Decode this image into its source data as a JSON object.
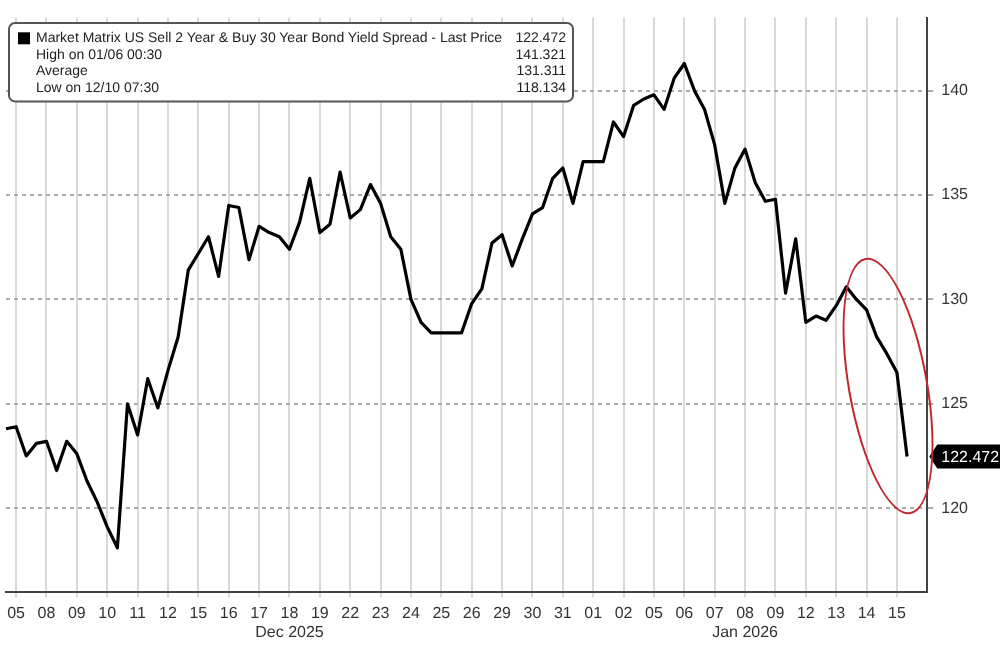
{
  "chart_data": {
    "type": "line",
    "categories": [
      null,
      "05",
      null,
      null,
      "08",
      null,
      null,
      "09",
      null,
      null,
      "10",
      null,
      null,
      "11",
      null,
      null,
      "12",
      null,
      null,
      "15",
      null,
      null,
      "16",
      null,
      null,
      "17",
      null,
      null,
      "18\nDec 2025",
      null,
      null,
      "19",
      null,
      null,
      "22",
      null,
      null,
      "23",
      null,
      null,
      "24",
      null,
      null,
      "25",
      null,
      null,
      "26",
      null,
      null,
      "29",
      null,
      null,
      "30",
      null,
      null,
      "31",
      null,
      null,
      "01",
      null,
      null,
      "02",
      null,
      null,
      "05",
      null,
      null,
      "06",
      null,
      null,
      "07",
      null,
      null,
      "08\nJan 2026",
      null,
      null,
      "09",
      null,
      null,
      "12",
      null,
      null,
      "13",
      null,
      null,
      "14",
      null,
      null,
      "15",
      null,
      null,
      null
    ],
    "series": [
      {
        "name": "Market Matrix US Sell 2 Year & Buy 30 Year Bond Yield Spread - Last Price",
        "color": "#000000",
        "values": [
          123.8,
          123.9,
          122.5,
          123.1,
          123.2,
          121.8,
          123.2,
          122.6,
          121.3,
          120.3,
          119.1,
          118.1,
          125.0,
          123.5,
          126.2,
          124.8,
          126.6,
          128.2,
          131.4,
          132.2,
          133.0,
          131.1,
          134.5,
          134.4,
          131.9,
          133.5,
          133.2,
          133.0,
          132.4,
          133.7,
          135.8,
          133.2,
          133.6,
          136.1,
          133.9,
          134.3,
          135.5,
          134.6,
          133.0,
          132.4,
          130.0,
          128.9,
          128.4,
          128.4,
          128.4,
          128.4,
          129.8,
          130.5,
          132.7,
          133.1,
          131.6,
          132.9,
          134.1,
          134.4,
          135.8,
          136.3,
          134.6,
          136.6,
          136.6,
          136.6,
          138.5,
          137.8,
          139.3,
          139.6,
          139.8,
          139.1,
          140.6,
          141.3,
          140.0,
          139.1,
          137.4,
          134.6,
          136.3,
          137.2,
          135.6,
          134.7,
          134.8,
          130.3,
          132.9,
          128.9,
          129.2,
          129.0,
          129.7,
          130.6,
          130.0,
          129.5,
          128.2,
          127.4,
          126.5,
          122.472,
          null,
          null
        ]
      }
    ],
    "ylim": [
      116,
      143.5
    ],
    "yticks": [
      120,
      125,
      130,
      135,
      140
    ],
    "grid": true,
    "legend": "top left",
    "marker": "none",
    "line_style": "solid",
    "annotations": [
      {
        "text": "122.472",
        "y": 122.472
      },
      "122.472",
      "High on 01/06 00:30",
      "141.321",
      "Average",
      "131.311",
      "Low on 12/10 07:30",
      "118.134"
    ]
  }
}
